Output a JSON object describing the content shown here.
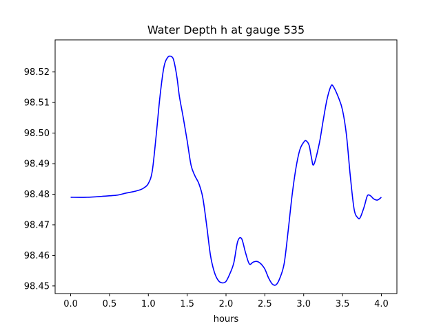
{
  "chart_data": {
    "type": "line",
    "title": "Water Depth h at gauge 535",
    "xlabel": "hours",
    "ylabel": "",
    "xlim": [
      -0.2,
      4.2
    ],
    "ylim": [
      98.4475,
      98.5305
    ],
    "x_ticks": [
      0.0,
      0.5,
      1.0,
      1.5,
      2.0,
      2.5,
      3.0,
      3.5,
      4.0
    ],
    "x_tick_labels": [
      "0.0",
      "0.5",
      "1.0",
      "1.5",
      "2.0",
      "2.5",
      "3.0",
      "3.5",
      "4.0"
    ],
    "y_ticks": [
      98.45,
      98.46,
      98.47,
      98.48,
      98.49,
      98.5,
      98.51,
      98.52
    ],
    "y_tick_labels": [
      "98.45",
      "98.46",
      "98.47",
      "98.48",
      "98.49",
      "98.50",
      "98.51",
      "98.52"
    ],
    "grid": false,
    "series": [
      {
        "color": "#0000ff",
        "x": [
          0.0,
          0.2,
          0.4,
          0.6,
          0.7,
          0.8,
          0.9,
          0.95,
          1.0,
          1.05,
          1.1,
          1.15,
          1.2,
          1.25,
          1.3,
          1.33,
          1.37,
          1.4,
          1.45,
          1.5,
          1.55,
          1.6,
          1.65,
          1.7,
          1.75,
          1.8,
          1.85,
          1.9,
          1.95,
          2.0,
          2.05,
          2.1,
          2.15,
          2.2,
          2.25,
          2.3,
          2.35,
          2.4,
          2.45,
          2.5,
          2.55,
          2.6,
          2.65,
          2.7,
          2.75,
          2.8,
          2.85,
          2.9,
          2.95,
          3.0,
          3.03,
          3.07,
          3.1,
          3.13,
          3.2,
          3.25,
          3.3,
          3.35,
          3.38,
          3.45,
          3.5,
          3.55,
          3.6,
          3.65,
          3.7,
          3.73,
          3.78,
          3.82,
          3.86,
          3.9,
          3.95,
          4.0
        ],
        "y": [
          98.479,
          98.479,
          98.4793,
          98.4797,
          98.4803,
          98.4808,
          98.4815,
          98.4822,
          98.4835,
          98.4875,
          98.499,
          98.512,
          98.5215,
          98.5248,
          98.525,
          98.5235,
          98.518,
          98.512,
          98.505,
          98.4975,
          98.4895,
          98.486,
          98.4835,
          98.479,
          98.47,
          98.46,
          98.4545,
          98.4518,
          98.451,
          98.4515,
          98.454,
          98.4575,
          98.4645,
          98.4655,
          98.461,
          98.4572,
          98.4578,
          98.458,
          98.4572,
          98.4555,
          98.4525,
          98.4505,
          98.4505,
          98.453,
          98.4575,
          98.468,
          98.4795,
          98.4885,
          98.4945,
          98.497,
          98.4975,
          98.496,
          98.492,
          98.4897,
          98.4965,
          98.504,
          98.511,
          98.5153,
          98.5153,
          98.5115,
          98.5075,
          98.4995,
          98.486,
          98.475,
          98.4722,
          98.4725,
          98.476,
          98.4795,
          98.4795,
          98.4785,
          98.4781,
          98.479
        ]
      }
    ]
  }
}
